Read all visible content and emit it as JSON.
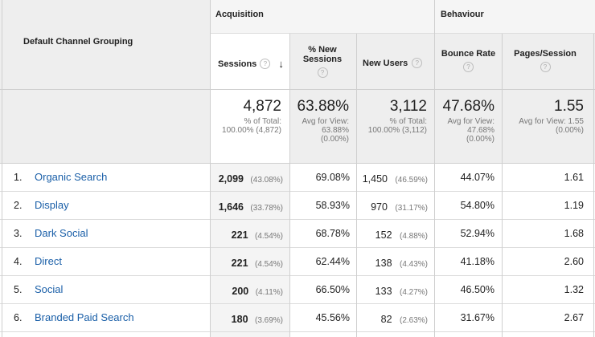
{
  "groups": {
    "acquisition": "Acquisition",
    "behaviour": "Behaviour"
  },
  "columns": {
    "dimension": "Default Channel Grouping",
    "sessions": "Sessions",
    "new_sessions": "% New Sessions",
    "new_users": "New Users",
    "bounce_rate": "Bounce Rate",
    "pages_session": "Pages/Session"
  },
  "help_glyph": "?",
  "sort_glyph": "↓",
  "totals": {
    "sessions": "4,872",
    "sessions_sub": "% of Total: 100.00% (4,872)",
    "new_sessions": "63.88%",
    "new_sessions_sub": "Avg for View: 63.88% (0.00%)",
    "new_users": "3,112",
    "new_users_sub": "% of Total: 100.00% (3,112)",
    "bounce_rate": "47.68%",
    "bounce_rate_sub": "Avg for View: 47.68% (0.00%)",
    "pages_session": "1.55",
    "pages_session_sub": "Avg for View: 1.55 (0.00%)"
  },
  "rows": [
    {
      "num": "1.",
      "name": "Organic Search",
      "sessions": "2,099",
      "sessions_pct": "(43.08%)",
      "new_sessions": "69.08%",
      "new_users": "1,450",
      "new_users_pct": "(46.59%)",
      "bounce": "44.07%",
      "pages": "1.61"
    },
    {
      "num": "2.",
      "name": "Display",
      "sessions": "1,646",
      "sessions_pct": "(33.78%)",
      "new_sessions": "58.93%",
      "new_users": "970",
      "new_users_pct": "(31.17%)",
      "bounce": "54.80%",
      "pages": "1.19"
    },
    {
      "num": "3.",
      "name": "Dark Social",
      "sessions": "221",
      "sessions_pct": "(4.54%)",
      "new_sessions": "68.78%",
      "new_users": "152",
      "new_users_pct": "(4.88%)",
      "bounce": "52.94%",
      "pages": "1.68"
    },
    {
      "num": "4.",
      "name": "Direct",
      "sessions": "221",
      "sessions_pct": "(4.54%)",
      "new_sessions": "62.44%",
      "new_users": "138",
      "new_users_pct": "(4.43%)",
      "bounce": "41.18%",
      "pages": "2.60"
    },
    {
      "num": "5.",
      "name": "Social",
      "sessions": "200",
      "sessions_pct": "(4.11%)",
      "new_sessions": "66.50%",
      "new_users": "133",
      "new_users_pct": "(4.27%)",
      "bounce": "46.50%",
      "pages": "1.32"
    },
    {
      "num": "6.",
      "name": "Branded Paid Search",
      "sessions": "180",
      "sessions_pct": "(3.69%)",
      "new_sessions": "45.56%",
      "new_users": "82",
      "new_users_pct": "(2.63%)",
      "bounce": "31.67%",
      "pages": "2.67"
    }
  ]
}
